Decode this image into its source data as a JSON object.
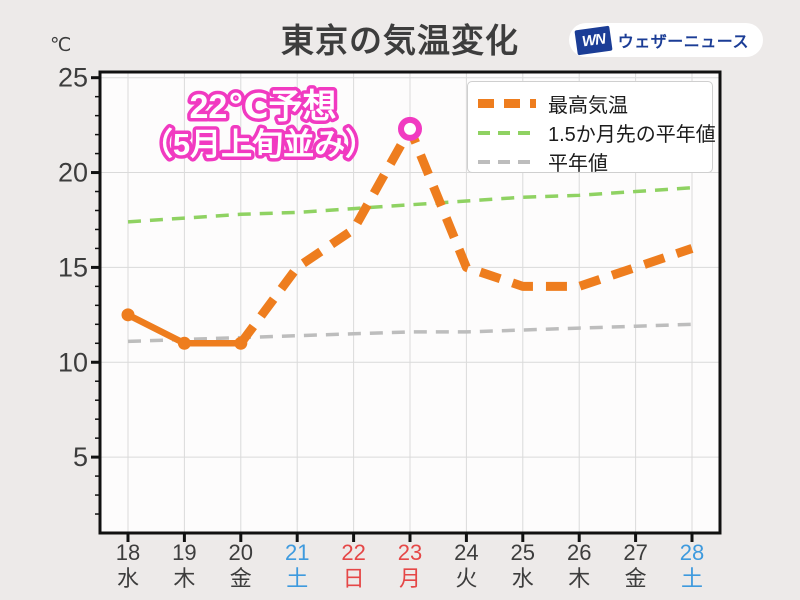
{
  "header": {
    "title": "東京の気温変化",
    "unit_label": "℃",
    "logo": {
      "badge": "WN",
      "brand": "ウェザーニュース"
    }
  },
  "annotation": {
    "line1": "22℃予想",
    "line2": "（5月上旬並み）"
  },
  "legend": [
    {
      "label": "最高気温"
    },
    {
      "label": "1.5か月先の平年値"
    },
    {
      "label": "平年値"
    }
  ],
  "colors": {
    "bg": "#edeae9",
    "plot_bg": "#fdfcfc",
    "grid": "#dadada",
    "dark": "#3d3d3d",
    "orange": "#ee7d1e",
    "green": "#8fd262",
    "gray": "#bdbdbd",
    "pink": "#f13ac1",
    "saturday_blue": "#3e9ade",
    "holiday_red": "#e54747",
    "logo_blue": "#1b3d96"
  },
  "chart_data": {
    "type": "line",
    "title": "東京の気温変化",
    "ylabel": "℃",
    "ylim": [
      1.0,
      25.3
    ],
    "yticks": [
      5,
      10,
      15,
      20,
      25
    ],
    "grid": true,
    "legend_position": "upper right",
    "categories": [
      {
        "date": "18",
        "dow": "水",
        "color_key": "weekday"
      },
      {
        "date": "19",
        "dow": "木",
        "color_key": "weekday"
      },
      {
        "date": "20",
        "dow": "金",
        "color_key": "weekday"
      },
      {
        "date": "21",
        "dow": "土",
        "color_key": "saturday"
      },
      {
        "date": "22",
        "dow": "日",
        "color_key": "holiday"
      },
      {
        "date": "23",
        "dow": "月",
        "color_key": "holiday"
      },
      {
        "date": "24",
        "dow": "火",
        "color_key": "weekday"
      },
      {
        "date": "25",
        "dow": "水",
        "color_key": "weekday"
      },
      {
        "date": "26",
        "dow": "木",
        "color_key": "weekday"
      },
      {
        "date": "27",
        "dow": "金",
        "color_key": "weekday"
      },
      {
        "date": "28",
        "dow": "土",
        "color_key": "saturday"
      }
    ],
    "series": [
      {
        "name": "最高気温",
        "values": [
          12.5,
          11,
          11,
          15,
          17,
          22.3,
          15,
          14,
          14,
          15,
          16
        ],
        "style": "thick-dashed",
        "solid_through_index": 2,
        "color_key": "orange",
        "highlight_index": 5,
        "highlight_label": "22℃予想（5月上旬並み）"
      },
      {
        "name": "1.5か月先の平年値",
        "values": [
          17.4,
          17.6,
          17.8,
          17.9,
          18.1,
          18.3,
          18.5,
          18.7,
          18.8,
          19.0,
          19.2
        ],
        "style": "dashed",
        "color_key": "green"
      },
      {
        "name": "平年値",
        "values": [
          11.1,
          11.2,
          11.3,
          11.4,
          11.5,
          11.6,
          11.6,
          11.7,
          11.8,
          11.9,
          12.0
        ],
        "style": "dashed",
        "color_key": "gray"
      }
    ]
  }
}
